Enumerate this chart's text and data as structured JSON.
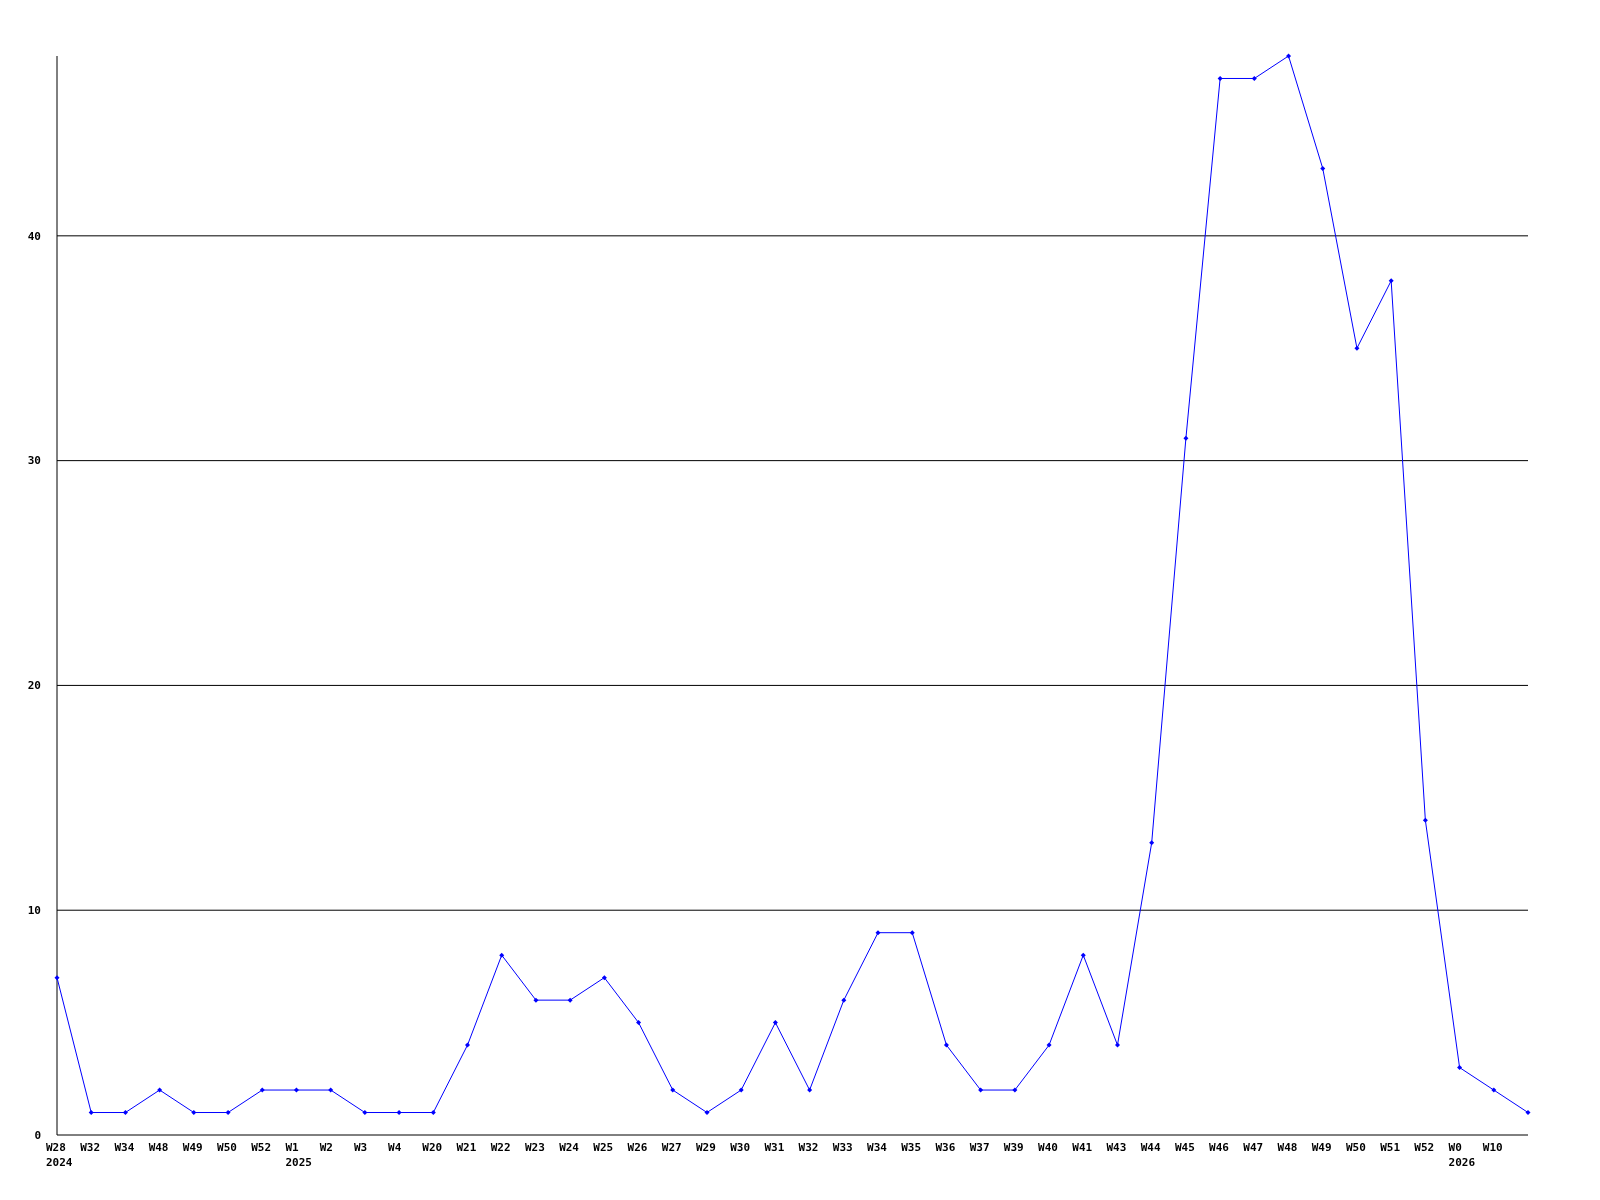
{
  "chart_data": {
    "type": "line",
    "categories": [
      "W28\n2024",
      "W32",
      "W34",
      "W48",
      "W49",
      "W50",
      "W52",
      "W1\n2025",
      "W2",
      "W3",
      "W4",
      "W20",
      "W21",
      "W22",
      "W23",
      "W24",
      "W25",
      "W26",
      "W27",
      "W29",
      "W30",
      "W31",
      "W32",
      "W33",
      "W34",
      "W35",
      "W36",
      "W37",
      "W39",
      "W40",
      "W41",
      "W43",
      "W44",
      "W45",
      "W46",
      "W47",
      "W48",
      "W49",
      "W50",
      "W51",
      "W52",
      "W0\n2026",
      "W10",
      null
    ],
    "series": [
      {
        "color": "#0000ff",
        "values": [
          7,
          1,
          1,
          2,
          1,
          1,
          2,
          2,
          2,
          1,
          1,
          1,
          4,
          8,
          6,
          6,
          7,
          5,
          2,
          1,
          2,
          5,
          2,
          6,
          9,
          9,
          4,
          2,
          2,
          4,
          8,
          4,
          13,
          31,
          47,
          47,
          48,
          43,
          35,
          38,
          14,
          3,
          2,
          1
        ]
      }
    ],
    "ylim": [
      0,
      48
    ],
    "yticks": [
      0,
      10,
      20,
      30,
      40
    ],
    "grid": "y",
    "marker": "diamond",
    "line_style": "solid"
  }
}
